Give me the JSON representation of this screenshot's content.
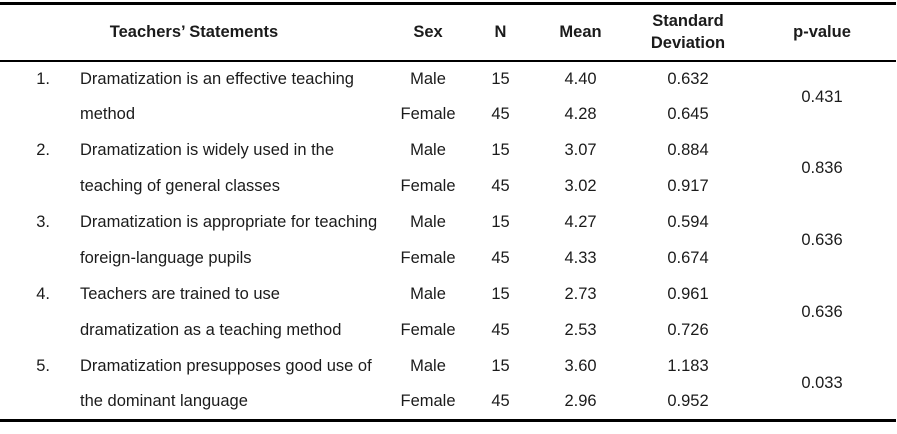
{
  "colors": {
    "background": "#ffffff",
    "text": "#1b1b1b",
    "rule": "#000000"
  },
  "table": {
    "headers": {
      "statements": "Teachers’ Statements",
      "sex": "Sex",
      "n": "N",
      "mean": "Mean",
      "sd_line1": "Standard",
      "sd_line2": "Deviation",
      "p_value": "p-value"
    },
    "groups": [
      {
        "number": "1.",
        "statement_line1": "Dramatization is an effective teaching",
        "statement_line2": "method",
        "male": {
          "sex": "Male",
          "n": "15",
          "mean": "4.40",
          "sd": "0.632"
        },
        "female": {
          "sex": "Female",
          "n": "45",
          "mean": "4.28",
          "sd": "0.645"
        },
        "p_value": "0.431"
      },
      {
        "number": "2.",
        "statement_line1": "Dramatization is widely used in the",
        "statement_line2": "teaching of general classes",
        "male": {
          "sex": "Male",
          "n": "15",
          "mean": "3.07",
          "sd": "0.884"
        },
        "female": {
          "sex": "Female",
          "n": "45",
          "mean": "3.02",
          "sd": "0.917"
        },
        "p_value": "0.836"
      },
      {
        "number": "3.",
        "statement_line1": "Dramatization is appropriate for teaching",
        "statement_line2": "foreign-language pupils",
        "male": {
          "sex": "Male",
          "n": "15",
          "mean": "4.27",
          "sd": "0.594"
        },
        "female": {
          "sex": "Female",
          "n": "45",
          "mean": "4.33",
          "sd": "0.674"
        },
        "p_value": "0.636"
      },
      {
        "number": "4.",
        "statement_line1": "Teachers are trained to use",
        "statement_line2": "dramatization as a teaching method",
        "male": {
          "sex": "Male",
          "n": "15",
          "mean": "2.73",
          "sd": "0.961"
        },
        "female": {
          "sex": "Female",
          "n": "45",
          "mean": "2.53",
          "sd": "0.726"
        },
        "p_value": "0.636"
      },
      {
        "number": "5.",
        "statement_line1": "Dramatization presupposes good use of",
        "statement_line2": "the dominant language",
        "male": {
          "sex": "Male",
          "n": "15",
          "mean": "3.60",
          "sd": "1.183"
        },
        "female": {
          "sex": "Female",
          "n": "45",
          "mean": "2.96",
          "sd": "0.952"
        },
        "p_value": "0.033"
      }
    ]
  }
}
